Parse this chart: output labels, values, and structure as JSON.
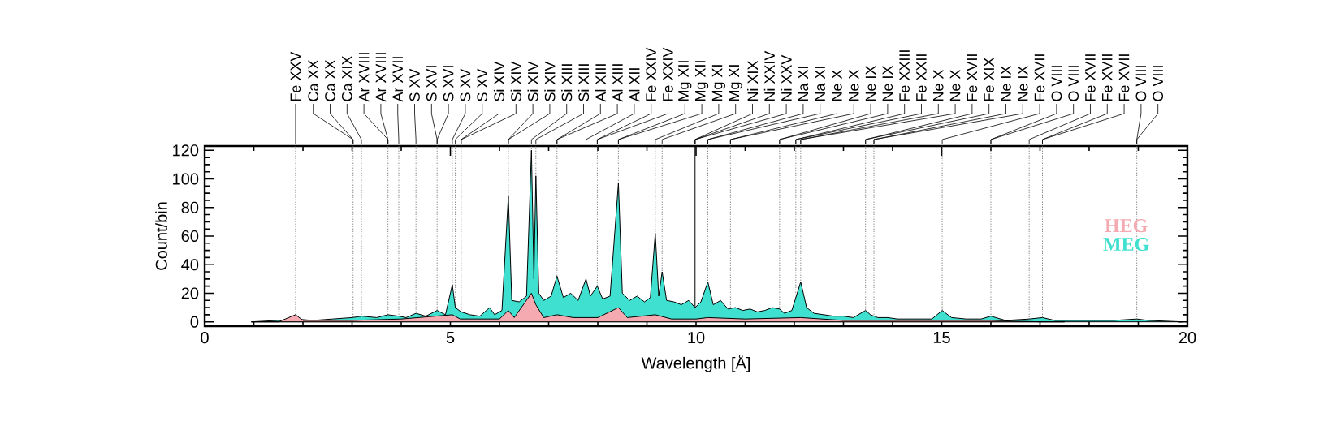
{
  "chart_data": {
    "type": "area",
    "xlabel": "Wavelength [Å]",
    "ylabel": "Count/bin",
    "xlim": [
      0,
      20
    ],
    "xticks": [
      0,
      5,
      10,
      15,
      20
    ],
    "ylim": [
      -3,
      123
    ],
    "yticks": [
      0,
      20,
      40,
      60,
      80,
      100,
      120
    ],
    "legend": "right",
    "series": [
      {
        "name": "HEG",
        "color": "#f4aab0",
        "x": [
          0.95,
          1.5,
          1.85,
          2.0,
          3.0,
          4.0,
          5.04,
          5.2,
          6.0,
          6.18,
          6.3,
          6.65,
          6.74,
          6.9,
          7.17,
          7.5,
          8.0,
          8.42,
          8.6,
          9.17,
          9.5,
          10.0,
          10.24,
          11.0,
          12.13,
          13.0,
          15.01,
          16.0,
          17.0,
          17.5
        ],
        "values": [
          0,
          0,
          5,
          1,
          1,
          2,
          5,
          2,
          2,
          8,
          3,
          20,
          12,
          3,
          5,
          3,
          3,
          10,
          3,
          5,
          2,
          2,
          3,
          2,
          3,
          1,
          1,
          1,
          0,
          0
        ]
      },
      {
        "name": "MEG",
        "color": "#40e0d0",
        "x": [
          0.95,
          1.5,
          1.85,
          2.2,
          2.6,
          3.0,
          3.2,
          3.5,
          3.73,
          3.95,
          4.1,
          4.3,
          4.5,
          4.73,
          4.9,
          5.04,
          5.1,
          5.22,
          5.4,
          5.6,
          5.8,
          5.9,
          6.05,
          6.18,
          6.25,
          6.4,
          6.55,
          6.65,
          6.7,
          6.74,
          6.8,
          6.9,
          7.05,
          7.17,
          7.3,
          7.45,
          7.6,
          7.76,
          7.85,
          7.99,
          8.1,
          8.25,
          8.42,
          8.5,
          8.65,
          8.8,
          8.95,
          9.07,
          9.17,
          9.24,
          9.31,
          9.4,
          9.55,
          9.7,
          9.85,
          9.98,
          10.1,
          10.24,
          10.35,
          10.5,
          10.65,
          10.8,
          10.95,
          11.1,
          11.25,
          11.4,
          11.55,
          11.7,
          11.8,
          11.95,
          12.13,
          12.25,
          12.4,
          12.6,
          12.8,
          13.0,
          13.2,
          13.45,
          13.55,
          13.7,
          13.9,
          14.1,
          14.3,
          14.5,
          14.8,
          15.01,
          15.2,
          15.5,
          15.8,
          16.0,
          16.3,
          16.78,
          17.05,
          17.3,
          17.6,
          18.0,
          18.5,
          18.97,
          19.2,
          19.9
        ],
        "values": [
          0,
          1,
          2,
          1,
          2,
          3,
          4,
          3,
          5,
          4,
          3,
          6,
          4,
          8,
          5,
          26,
          10,
          7,
          5,
          4,
          10,
          5,
          8,
          88,
          15,
          14,
          18,
          120,
          30,
          102,
          20,
          15,
          18,
          32,
          17,
          20,
          15,
          30,
          18,
          25,
          16,
          18,
          97,
          20,
          15,
          18,
          14,
          17,
          62,
          18,
          35,
          15,
          14,
          12,
          15,
          10,
          14,
          28,
          12,
          15,
          9,
          10,
          8,
          9,
          7,
          8,
          10,
          9,
          6,
          8,
          28,
          10,
          6,
          5,
          4,
          4,
          3,
          8,
          5,
          3,
          3,
          2,
          2,
          2,
          2,
          8,
          3,
          2,
          2,
          4,
          1,
          2,
          3,
          1,
          1,
          1,
          1,
          2,
          1,
          0
        ]
      }
    ],
    "ref_lines": [
      {
        "axis": "x",
        "value": 1.85,
        "label": "Fe XXV",
        "line_style": "dotted"
      },
      {
        "axis": "x",
        "value": 3.02,
        "label": "Ca XX",
        "line_style": "dotted"
      },
      {
        "axis": "x",
        "value": 3.19,
        "label": "Ca XIX",
        "line_style": "dotted"
      },
      {
        "axis": "x",
        "value": 3.73,
        "label": "Ar XVIII",
        "line_style": "dotted"
      },
      {
        "axis": "x",
        "value": 3.95,
        "label": "Ar XVII",
        "line_style": "dotted"
      },
      {
        "axis": "x",
        "value": 4.3,
        "label": "S XV",
        "line_style": "dotted"
      },
      {
        "axis": "x",
        "value": 4.73,
        "label": "S XVI",
        "line_style": "dotted"
      },
      {
        "axis": "x",
        "value": 5.04,
        "label": "S XV",
        "line_style": "dotted"
      },
      {
        "axis": "x",
        "value": 5.1,
        "label": "S XV",
        "line_style": "dotted"
      },
      {
        "axis": "x",
        "value": 5.22,
        "label": "Si XIV",
        "line_style": "dotted"
      },
      {
        "axis": "x",
        "value": 6.18,
        "label": "Si XIV",
        "line_style": "dotted"
      },
      {
        "axis": "x",
        "value": 6.65,
        "label": "Si XIII",
        "line_style": "dotted"
      },
      {
        "axis": "x",
        "value": 6.74,
        "label": "Si XIII",
        "line_style": "dotted"
      },
      {
        "axis": "x",
        "value": 7.17,
        "label": "Al XIII",
        "line_style": "dotted"
      },
      {
        "axis": "x",
        "value": 7.76,
        "label": "Al XII",
        "line_style": "dotted"
      },
      {
        "axis": "x",
        "value": 7.99,
        "label": "Fe XXIV",
        "line_style": "dotted"
      },
      {
        "axis": "x",
        "value": 8.42,
        "label": "Mg XII",
        "line_style": "dotted"
      },
      {
        "axis": "x",
        "value": 9.17,
        "label": "Mg XI",
        "line_style": "dotted"
      },
      {
        "axis": "x",
        "value": 9.31,
        "label": "Mg XI",
        "line_style": "dotted"
      },
      {
        "axis": "x",
        "value": 9.98,
        "label": "Ni XIX",
        "line_style": "solid"
      },
      {
        "axis": "x",
        "value": 10.24,
        "label": "Na XI",
        "line_style": "dotted"
      },
      {
        "axis": "x",
        "value": 10.7,
        "label": "Ne X",
        "line_style": "dotted"
      },
      {
        "axis": "x",
        "value": 11.7,
        "label": "Ne IX",
        "line_style": "dotted"
      },
      {
        "axis": "x",
        "value": 12.03,
        "label": "Fe XXIII",
        "line_style": "dotted"
      },
      {
        "axis": "x",
        "value": 12.13,
        "label": "Ne X",
        "line_style": "dotted"
      },
      {
        "axis": "x",
        "value": 13.45,
        "label": "Fe XVII",
        "line_style": "dotted"
      },
      {
        "axis": "x",
        "value": 13.62,
        "label": "Ne IX",
        "line_style": "dotted"
      },
      {
        "axis": "x",
        "value": 15.01,
        "label": "Fe XVII",
        "line_style": "dotted"
      },
      {
        "axis": "x",
        "value": 16.0,
        "label": "O VIII",
        "line_style": "dotted"
      },
      {
        "axis": "x",
        "value": 16.78,
        "label": "Fe XVII",
        "line_style": "dotted"
      },
      {
        "axis": "x",
        "value": 17.05,
        "label": "Fe XVII",
        "line_style": "dotted"
      },
      {
        "axis": "x",
        "value": 18.97,
        "label": "O VIII",
        "line_style": "dotted"
      }
    ],
    "annotations": [
      {
        "text": "Ca XX",
        "x": 3.02
      },
      {
        "text": "Ar XVIII",
        "x": 3.73
      },
      {
        "text": "S XVI",
        "x": 4.73
      },
      {
        "text": "Si XIV",
        "x": 5.22
      },
      {
        "text": "Si XIV",
        "x": 6.18
      },
      {
        "text": "Al XIII",
        "x": 7.17
      },
      {
        "text": "Fe XXIV",
        "x": 7.99
      },
      {
        "text": "Mg XII",
        "x": 8.42
      },
      {
        "text": "Ni XXIV",
        "x": 9.98
      },
      {
        "text": "Ni XXV",
        "x": 9.98
      },
      {
        "text": "Na XI",
        "x": 10.24
      },
      {
        "text": "Ne X",
        "x": 10.7
      },
      {
        "text": "Ne IX",
        "x": 11.7
      },
      {
        "text": "Fe XXII",
        "x": 12.03
      },
      {
        "text": "Ne X",
        "x": 12.13
      },
      {
        "text": "Fe XIX",
        "x": 13.45
      },
      {
        "text": "Ne IX",
        "x": 13.62
      },
      {
        "text": "O VIII",
        "x": 16.0
      },
      {
        "text": "Fe XVII",
        "x": 17.05
      },
      {
        "text": "O VIII",
        "x": 18.97
      }
    ]
  }
}
